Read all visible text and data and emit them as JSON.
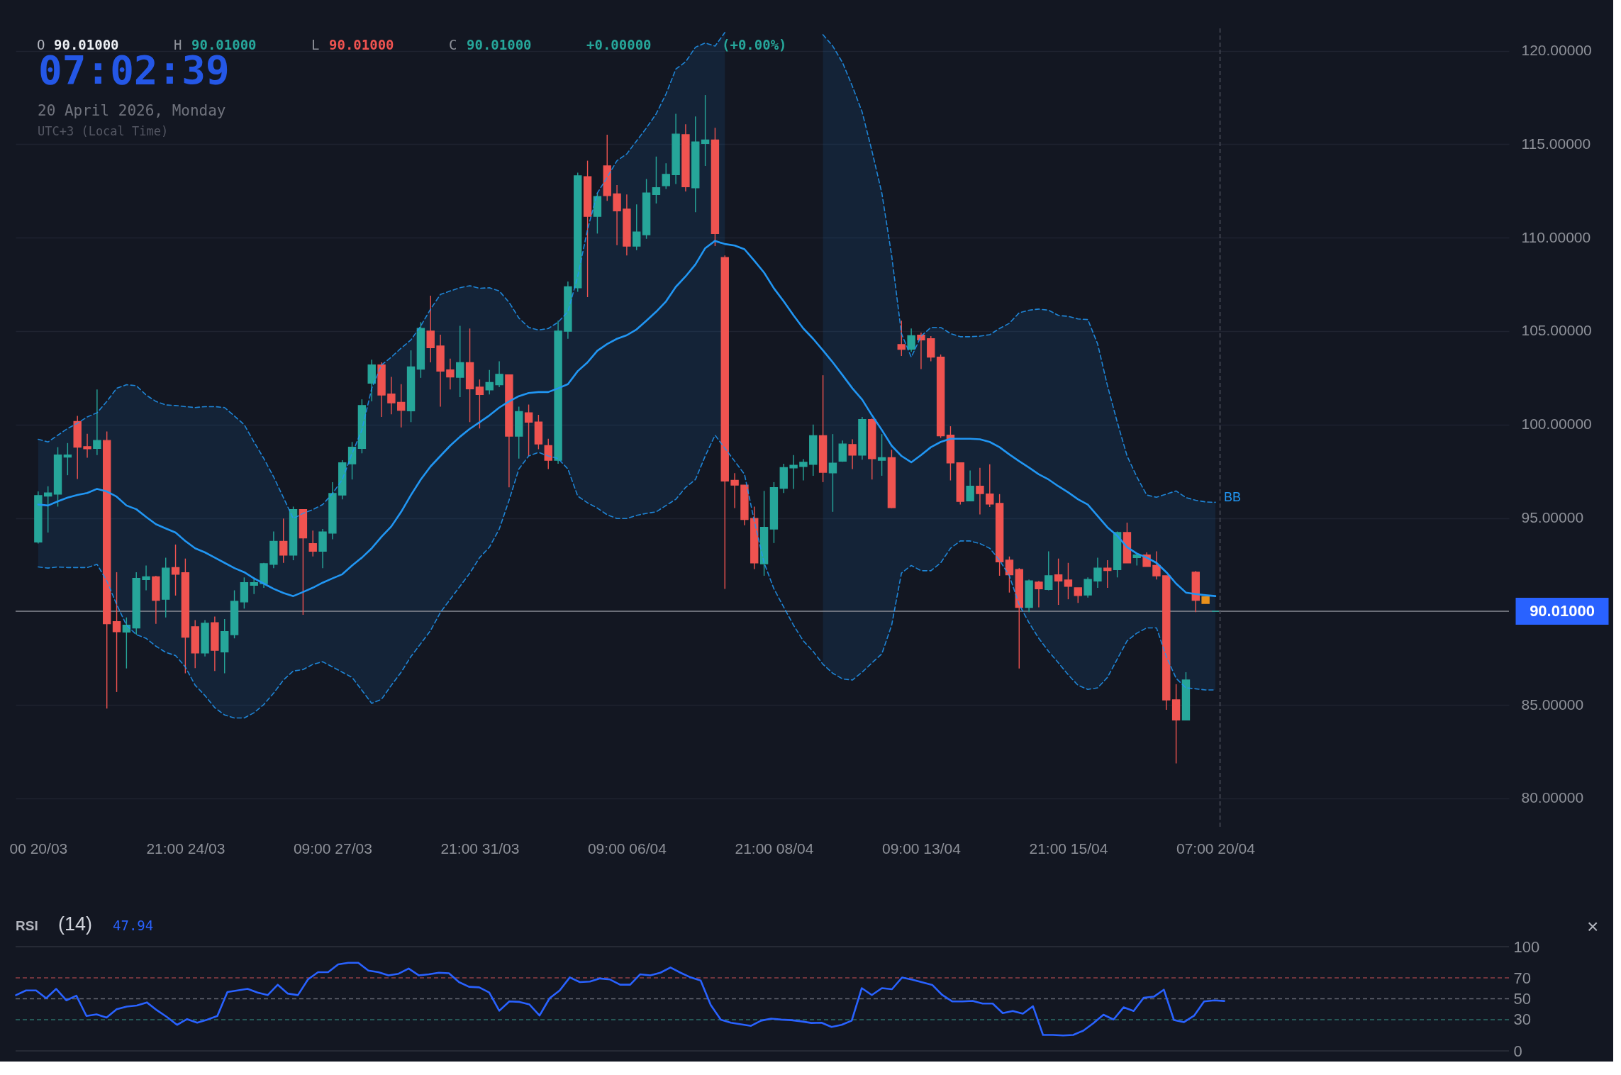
{
  "chart_data": [
    {
      "type": "candlestick",
      "annotations": [
        "O",
        "90.01000",
        "H",
        "90.01000",
        "L",
        "90.01000",
        "C",
        "90.01000",
        "+0.00000",
        "(+0.00%)",
        "07:02:39",
        "20 April 2026, Monday",
        "UTC+3 (Local Time)"
      ],
      "categories": [
        "00 20/03",
        null,
        null,
        null,
        null,
        null,
        null,
        null,
        null,
        null,
        null,
        null,
        null,
        null,
        null,
        "21:00 24/03",
        null,
        null,
        null,
        null,
        null,
        null,
        null,
        null,
        null,
        null,
        null,
        null,
        null,
        null,
        "09:00 27/03",
        null,
        null,
        null,
        null,
        null,
        null,
        null,
        null,
        null,
        null,
        null,
        null,
        null,
        null,
        "21:00 31/03",
        null,
        null,
        null,
        null,
        null,
        null,
        null,
        null,
        null,
        null,
        null,
        null,
        null,
        null,
        "09:00 06/04",
        null,
        null,
        null,
        null,
        null,
        null,
        null,
        null,
        null,
        null,
        null,
        null,
        null,
        null,
        "21:00 08/04",
        null,
        null,
        null,
        null,
        null,
        null,
        null,
        null,
        null,
        null,
        null,
        null,
        null,
        null,
        "09:00 13/04",
        null,
        null,
        null,
        null,
        null,
        null,
        null,
        null,
        null,
        null,
        null,
        null,
        null,
        null,
        "21:00 15/04",
        null,
        null,
        null,
        null,
        null,
        null,
        null,
        null,
        null,
        null,
        null,
        null,
        null,
        null,
        "07:00 20/04"
      ],
      "ohlc": [
        [
          93.72,
          96.42,
          93.63,
          96.2
        ],
        [
          96.17,
          96.7,
          94.22,
          96.34
        ],
        [
          96.28,
          98.79,
          95.61,
          98.37
        ],
        [
          98.26,
          99.01,
          97.29,
          98.37
        ],
        [
          100.16,
          100.46,
          97.09,
          98.79
        ],
        [
          98.82,
          99.51,
          98.23,
          98.71
        ],
        [
          98.73,
          101.88,
          98.37,
          99.15
        ],
        [
          99.15,
          99.63,
          84.8,
          89.34
        ],
        [
          89.45,
          92.1,
          85.69,
          88.92
        ],
        [
          88.9,
          89.68,
          86.95,
          89.26
        ],
        [
          89.12,
          92.1,
          88.76,
          91.77
        ],
        [
          91.71,
          92.46,
          91.13,
          91.85
        ],
        [
          91.85,
          91.91,
          89.34,
          90.6
        ],
        [
          90.65,
          92.88,
          89.68,
          92.32
        ],
        [
          92.35,
          93.58,
          90.85,
          91.99
        ],
        [
          92.07,
          92.83,
          86.69,
          88.62
        ],
        [
          89.18,
          89.54,
          86.97,
          87.78
        ],
        [
          87.78,
          89.54,
          87.59,
          89.37
        ],
        [
          89.4,
          89.73,
          86.81,
          87.92
        ],
        [
          87.84,
          89.59,
          86.69,
          88.92
        ],
        [
          88.76,
          91.13,
          88.56,
          90.54
        ],
        [
          90.51,
          91.82,
          90.15,
          91.54
        ],
        [
          91.4,
          91.82,
          90.93,
          91.54
        ],
        [
          91.49,
          92.6,
          91.26,
          92.55
        ],
        [
          92.52,
          94.28,
          92.32,
          93.75
        ],
        [
          93.75,
          94.97,
          92.6,
          93.02
        ],
        [
          93.02,
          95.61,
          92.74,
          95.45
        ],
        [
          95.45,
          95.45,
          89.82,
          93.94
        ],
        [
          93.63,
          94.33,
          92.94,
          93.22
        ],
        [
          93.22,
          94.41,
          92.32,
          94.25
        ],
        [
          94.19,
          96.92,
          93.86,
          96.31
        ],
        [
          96.23,
          98.09,
          96.0,
          97.95
        ],
        [
          97.9,
          99.07,
          97.06,
          98.79
        ],
        [
          98.73,
          101.35,
          98.46,
          101.02
        ],
        [
          102.22,
          103.47,
          101.24,
          103.19
        ],
        [
          103.19,
          103.33,
          100.41,
          101.58
        ],
        [
          101.63,
          102.55,
          100.55,
          101.16
        ],
        [
          101.19,
          102.16,
          99.85,
          100.77
        ],
        [
          100.74,
          103.97,
          100.13,
          103.08
        ],
        [
          102.97,
          105.48,
          102.5,
          105.14
        ],
        [
          105.0,
          106.9,
          103.33,
          104.11
        ],
        [
          104.2,
          104.81,
          100.96,
          102.86
        ],
        [
          102.92,
          103.53,
          101.88,
          102.55
        ],
        [
          102.53,
          105.28,
          101.47,
          103.31
        ],
        [
          103.31,
          105.14,
          100.13,
          101.91
        ],
        [
          102.0,
          102.41,
          99.79,
          101.61
        ],
        [
          101.86,
          102.92,
          101.61,
          102.25
        ],
        [
          102.13,
          103.39,
          102.0,
          102.69
        ],
        [
          102.66,
          102.66,
          96.64,
          99.38
        ],
        [
          99.38,
          100.96,
          98.18,
          100.69
        ],
        [
          100.63,
          101.07,
          98.32,
          100.13
        ],
        [
          100.13,
          100.52,
          98.68,
          98.96
        ],
        [
          98.87,
          99.24,
          97.62,
          98.09
        ],
        [
          98.09,
          105.56,
          97.9,
          105.0
        ],
        [
          105.0,
          107.65,
          104.59,
          107.37
        ],
        [
          107.32,
          113.48,
          107.1,
          113.31
        ],
        [
          113.26,
          114.12,
          106.82,
          111.14
        ],
        [
          111.14,
          112.39,
          110.22,
          112.2
        ],
        [
          113.84,
          115.51,
          111.97,
          112.25
        ],
        [
          112.34,
          112.81,
          109.6,
          111.44
        ],
        [
          111.53,
          112.31,
          109.05,
          109.55
        ],
        [
          109.55,
          111.78,
          109.33,
          110.3
        ],
        [
          110.16,
          113.14,
          109.94,
          112.39
        ],
        [
          112.31,
          114.34,
          111.83,
          112.67
        ],
        [
          112.78,
          113.98,
          112.61,
          113.39
        ],
        [
          113.37,
          116.63,
          112.87,
          115.54
        ],
        [
          115.51,
          116.07,
          112.47,
          112.73
        ],
        [
          112.67,
          116.49,
          111.36,
          115.12
        ],
        [
          115.04,
          117.63,
          113.84,
          115.23
        ],
        [
          115.23,
          115.88,
          109.55,
          110.22
        ],
        [
          108.94,
          109.05,
          91.21,
          96.98
        ],
        [
          97.01,
          97.4,
          95.53,
          96.76
        ],
        [
          96.76,
          96.76,
          94.61,
          94.92
        ],
        [
          94.97,
          95.61,
          92.27,
          92.6
        ],
        [
          92.55,
          96.45,
          91.91,
          94.5
        ],
        [
          94.41,
          96.92,
          93.66,
          96.62
        ],
        [
          96.59,
          97.9,
          96.34,
          97.7
        ],
        [
          97.68,
          98.37,
          96.56,
          97.82
        ],
        [
          97.76,
          98.15,
          97.01,
          97.98
        ],
        [
          97.87,
          100.0,
          97.26,
          99.4
        ],
        [
          99.4,
          102.64,
          96.92,
          97.45
        ],
        [
          97.42,
          99.49,
          95.33,
          97.93
        ],
        [
          98.04,
          99.15,
          98.01,
          98.96
        ],
        [
          98.93,
          99.21,
          97.62,
          98.37
        ],
        [
          98.37,
          100.41,
          98.12,
          100.27
        ],
        [
          100.27,
          100.32,
          97.06,
          98.18
        ],
        [
          98.09,
          99.49,
          97.26,
          98.23
        ],
        [
          98.23,
          98.65,
          95.53,
          95.56
        ],
        [
          104.28,
          105.56,
          103.67,
          104.03
        ],
        [
          104.03,
          105.14,
          103.89,
          104.75
        ],
        [
          104.78,
          104.92,
          102.97,
          104.53
        ],
        [
          104.59,
          104.73,
          103.39,
          103.61
        ],
        [
          103.61,
          103.75,
          99.29,
          99.4
        ],
        [
          99.43,
          99.91,
          97.01,
          97.95
        ],
        [
          97.95,
          97.95,
          95.72,
          95.89
        ],
        [
          95.92,
          97.54,
          95.92,
          96.7
        ],
        [
          96.7,
          97.68,
          95.19,
          96.31
        ],
        [
          96.28,
          97.87,
          95.59,
          95.75
        ],
        [
          95.78,
          96.28,
          91.91,
          92.66
        ],
        [
          92.74,
          92.94,
          91.01,
          91.96
        ],
        [
          92.24,
          92.32,
          86.95,
          90.22
        ],
        [
          90.22,
          91.71,
          89.96,
          91.63
        ],
        [
          91.57,
          91.63,
          90.22,
          91.21
        ],
        [
          91.18,
          93.22,
          91.13,
          91.91
        ],
        [
          91.96,
          92.83,
          90.35,
          91.63
        ],
        [
          91.68,
          92.6,
          90.65,
          91.35
        ],
        [
          91.26,
          91.26,
          90.46,
          90.85
        ],
        [
          90.88,
          91.82,
          90.74,
          91.71
        ],
        [
          91.63,
          92.88,
          91.26,
          92.32
        ],
        [
          92.32,
          92.74,
          91.26,
          92.19
        ],
        [
          92.24,
          94.28,
          91.82,
          94.22
        ],
        [
          94.22,
          94.75,
          92.6,
          92.6
        ],
        [
          92.88,
          93.1,
          92.46,
          93.02
        ],
        [
          93.02,
          93.16,
          92.41,
          92.41
        ],
        [
          92.46,
          93.22,
          91.71,
          91.91
        ],
        [
          91.91,
          91.91,
          84.74,
          85.27
        ],
        [
          85.27,
          86.11,
          81.87,
          84.19
        ],
        [
          84.19,
          86.75,
          84.19,
          86.33
        ],
        [
          92.1,
          92.16,
          89.96,
          90.6
        ],
        [
          90.79,
          90.79,
          90.43,
          90.43
        ],
        [
          90.01,
          90.01,
          90.01,
          90.01
        ]
      ],
      "colors": [
        "#26a69a",
        "#26a69a",
        "#26a69a",
        "#26a69a",
        "#ef5350",
        "#ef5350",
        "#26a69a",
        "#ef5350",
        "#ef5350",
        "#26a69a",
        "#26a69a",
        "#26a69a",
        "#ef5350",
        "#26a69a",
        "#ef5350",
        "#ef5350",
        "#ef5350",
        "#26a69a",
        "#ef5350",
        "#26a69a",
        "#26a69a",
        "#26a69a",
        "#26a69a",
        "#26a69a",
        "#26a69a",
        "#ef5350",
        "#26a69a",
        "#ef5350",
        "#ef5350",
        "#26a69a",
        "#26a69a",
        "#26a69a",
        "#26a69a",
        "#26a69a",
        "#26a69a",
        "#ef5350",
        "#ef5350",
        "#ef5350",
        "#26a69a",
        "#26a69a",
        "#ef5350",
        "#ef5350",
        "#ef5350",
        "#26a69a",
        "#ef5350",
        "#ef5350",
        "#26a69a",
        "#26a69a",
        "#ef5350",
        "#26a69a",
        "#ef5350",
        "#ef5350",
        "#ef5350",
        "#26a69a",
        "#26a69a",
        "#26a69a",
        "#ef5350",
        "#26a69a",
        "#ef5350",
        "#ef5350",
        "#ef5350",
        "#26a69a",
        "#26a69a",
        "#26a69a",
        "#26a69a",
        "#26a69a",
        "#ef5350",
        "#26a69a",
        "#26a69a",
        "#ef5350",
        "#ef5350",
        "#ef5350",
        "#ef5350",
        "#ef5350",
        "#26a69a",
        "#26a69a",
        "#26a69a",
        "#26a69a",
        "#26a69a",
        "#26a69a",
        "#ef5350",
        "#26a69a",
        "#26a69a",
        "#ef5350",
        "#26a69a",
        "#ef5350",
        "#26a69a",
        "#ef5350",
        "#ef5350",
        "#26a69a",
        "#ef5350",
        "#ef5350",
        "#ef5350",
        "#ef5350",
        "#ef5350",
        "#26a69a",
        "#ef5350",
        "#ef5350",
        "#ef5350",
        "#ef5350",
        "#ef5350",
        "#26a69a",
        "#ef5350",
        "#26a69a",
        "#ef5350",
        "#ef5350",
        "#ef5350",
        "#26a69a",
        "#26a69a",
        "#ef5350",
        "#26a69a",
        "#ef5350",
        "#26a69a",
        "#ef5350",
        "#ef5350",
        "#ef5350",
        "#ef5350",
        "#26a69a",
        "#ef5350",
        "#e8911c",
        "#26a69a"
      ],
      "series": [
        {
          "name": "BB",
          "type": "line",
          "color": "#2196f3",
          "values": [
            95.72,
            95.67,
            95.89,
            96.09,
            96.23,
            96.34,
            96.56,
            96.42,
            96.14,
            95.67,
            95.47,
            95.06,
            94.67,
            94.44,
            94.22,
            93.77,
            93.38,
            93.16,
            92.88,
            92.6,
            92.32,
            92.1,
            91.77,
            91.49,
            91.21,
            90.99,
            90.82,
            91.04,
            91.27,
            91.54,
            91.77,
            91.99,
            92.46,
            92.88,
            93.38,
            94.0,
            94.55,
            95.33,
            96.23,
            97.06,
            97.76,
            98.32,
            98.87,
            99.35,
            99.77,
            100.13,
            100.49,
            100.91,
            101.24,
            101.52,
            101.69,
            101.74,
            101.74,
            101.94,
            102.16,
            102.86,
            103.33,
            103.95,
            104.31,
            104.59,
            104.78,
            105.09,
            105.56,
            106.04,
            106.59,
            107.37,
            107.93,
            108.57,
            109.44,
            109.83,
            109.66,
            109.58,
            109.38,
            108.77,
            108.13,
            107.29,
            106.59,
            105.84,
            105.14,
            104.59,
            103.97,
            103.33,
            102.64,
            101.94,
            101.33,
            100.49,
            99.71,
            98.87,
            98.32,
            97.98,
            98.37,
            98.79,
            99.07,
            99.24,
            99.24,
            99.24,
            99.21,
            99.07,
            98.79,
            98.4,
            98.04,
            97.7,
            97.34,
            97.06,
            96.7,
            96.37,
            96.0,
            95.72,
            95.11,
            94.5,
            94.05,
            93.44,
            93.1,
            92.88,
            92.6,
            92.1,
            91.49,
            91.01,
            90.93,
            90.87,
            90.82
          ],
          "lower": [
            92.38,
            92.32,
            92.38,
            92.35,
            92.35,
            92.35,
            92.52,
            91.63,
            90.37,
            89.26,
            88.76,
            88.56,
            88.14,
            87.81,
            87.64,
            87.03,
            86.05,
            85.5,
            84.85,
            84.46,
            84.3,
            84.3,
            84.58,
            85.02,
            85.63,
            86.33,
            86.81,
            86.89,
            87.17,
            87.31,
            87.03,
            86.75,
            86.47,
            85.78,
            85.08,
            85.3,
            86.05,
            86.75,
            87.59,
            88.28,
            88.98,
            89.95,
            90.65,
            91.35,
            92.05,
            92.88,
            93.44,
            94.41,
            95.95,
            97.62,
            98.32,
            98.51,
            98.32,
            98.18,
            97.62,
            96.17,
            95.81,
            95.53,
            95.17,
            94.97,
            94.97,
            95.14,
            95.25,
            95.33,
            95.67,
            96.0,
            96.64,
            97.06,
            98.32,
            99.43,
            98.73,
            null,
            null,
            null,
            null,
            null,
            null,
            null,
            null,
            null,
            87.17,
            86.69,
            86.39,
            86.33,
            86.75,
            87.25,
            87.73,
            89.26,
            92.05,
            92.46,
            92.18,
            92.18,
            92.6,
            93.38,
            93.77,
            93.77,
            93.63,
            93.38,
            92.74,
            91.91,
            90.37,
            89.4,
            88.56,
            87.86,
            87.25,
            86.61,
            86.05,
            85.83,
            85.91,
            86.47,
            87.45,
            88.42,
            88.84,
            89.12,
            89.12,
            87.59,
            86.42,
            85.91,
            85.86,
            85.8,
            85.8
          ],
          "upper": [
            99.21,
            99.07,
            99.43,
            99.79,
            100.07,
            100.41,
            100.63,
            101.24,
            101.94,
            102.13,
            102.08,
            101.58,
            101.24,
            101.05,
            101.02,
            100.96,
            100.91,
            100.96,
            100.96,
            100.91,
            100.46,
            99.99,
            99.07,
            98.18,
            97.2,
            96.09,
            94.97,
            95.25,
            95.45,
            95.72,
            96.31,
            97.06,
            98.46,
            99.71,
            101.94,
            103.19,
            103.61,
            104.09,
            104.53,
            105.28,
            106.18,
            106.96,
            107.15,
            107.32,
            107.43,
            107.29,
            107.32,
            107.15,
            106.54,
            105.7,
            105.2,
            105.06,
            105.14,
            105.48,
            106.04,
            107.93,
            110.44,
            112.39,
            113.23,
            114.12,
            114.48,
            115.18,
            115.87,
            116.63,
            117.69,
            119.02,
            119.41,
            120.19,
            120.42,
            120.25,
            120.98,
            null,
            null,
            null,
            null,
            null,
            null,
            null,
            null,
            null,
            120.86,
            120.25,
            119.36,
            118.1,
            116.71,
            114.62,
            112.39,
            109.05,
            104.87,
            103.61,
            104.73,
            105.2,
            105.2,
            104.87,
            104.7,
            104.7,
            104.73,
            104.81,
            105.14,
            105.42,
            105.98,
            106.12,
            106.18,
            106.12,
            105.84,
            105.79,
            105.65,
            105.62,
            104.31,
            102.08,
            100.13,
            98.32,
            97.2,
            96.23,
            96.11,
            96.28,
            96.45,
            96.09,
            95.95,
            95.86,
            95.84
          ]
        },
        {
          "type": "line",
          "color": "#2196f3",
          "line_style": "dashed",
          "values": [
            99.21,
            99.07,
            99.43,
            99.79,
            100.07,
            100.41,
            100.63,
            101.24,
            101.94,
            102.13,
            102.08,
            101.58,
            101.24,
            101.05,
            101.02,
            100.96,
            100.91,
            100.96,
            100.96,
            100.91,
            100.46,
            99.99,
            99.07,
            98.18,
            97.2,
            96.09,
            94.97,
            95.25,
            95.45,
            95.72,
            96.31,
            97.06,
            98.46,
            99.71,
            101.94,
            103.19,
            103.61,
            104.09,
            104.53,
            105.28,
            106.18,
            106.96,
            107.15,
            107.32,
            107.43,
            107.29,
            107.32,
            107.15,
            106.54,
            105.7,
            105.2,
            105.06,
            105.14,
            105.48,
            106.04,
            107.93,
            110.44,
            112.39,
            113.23,
            114.12,
            114.48,
            115.18,
            115.87,
            116.63,
            117.69,
            119.02,
            119.41,
            120.19,
            120.42,
            120.25,
            120.98,
            null,
            null,
            null,
            null,
            null,
            null,
            null,
            null,
            null,
            120.86,
            120.25,
            119.36,
            118.1,
            116.71,
            114.62,
            112.39,
            109.05,
            104.87,
            103.61,
            104.73,
            105.2,
            105.2,
            104.87,
            104.7,
            104.7,
            104.73,
            104.81,
            105.14,
            105.42,
            105.98,
            106.12,
            106.18,
            106.12,
            105.84,
            105.79,
            105.65,
            105.62,
            104.31,
            102.08,
            100.13,
            98.32,
            97.2,
            96.23,
            96.11,
            96.28,
            96.45,
            96.09,
            95.95,
            95.86,
            95.84
          ]
        },
        {
          "type": "line",
          "color": "#2196f3",
          "line_style": "dashed",
          "values": [
            92.38,
            92.32,
            92.38,
            92.35,
            92.35,
            92.35,
            92.52,
            91.63,
            90.37,
            89.26,
            88.76,
            88.56,
            88.14,
            87.81,
            87.64,
            87.03,
            86.05,
            85.5,
            84.85,
            84.46,
            84.3,
            84.3,
            84.58,
            85.02,
            85.63,
            86.33,
            86.81,
            86.89,
            87.17,
            87.31,
            87.03,
            86.75,
            86.47,
            85.78,
            85.08,
            85.3,
            86.05,
            86.75,
            87.59,
            88.28,
            88.98,
            89.95,
            90.65,
            91.35,
            92.05,
            92.88,
            93.44,
            94.41,
            95.95,
            97.62,
            98.32,
            98.51,
            98.32,
            98.18,
            97.62,
            96.17,
            95.81,
            95.53,
            95.17,
            94.97,
            94.97,
            95.14,
            95.25,
            95.33,
            95.67,
            96.0,
            96.64,
            97.06,
            98.32,
            99.43,
            98.73,
            98.04,
            97.34,
            94.83,
            92.6,
            91.21,
            90.23,
            89.26,
            88.42,
            87.86,
            87.17,
            86.69,
            86.39,
            86.33,
            86.75,
            87.25,
            87.73,
            89.26,
            92.05,
            92.46,
            92.18,
            92.18,
            92.6,
            93.38,
            93.77,
            93.77,
            93.63,
            93.38,
            92.74,
            91.91,
            90.37,
            89.4,
            88.56,
            87.86,
            87.25,
            86.61,
            86.05,
            85.83,
            85.91,
            86.47,
            87.45,
            88.42,
            88.84,
            89.12,
            89.12,
            87.59,
            86.42,
            85.91,
            85.86,
            85.8,
            85.8
          ]
        }
      ],
      "ylim": [
        78.4,
        121.2
      ],
      "yticks": [
        {
          "value": 80,
          "label": "80.00000"
        },
        {
          "value": 85,
          "label": "85.00000"
        },
        {
          "value": 95,
          "label": "95.00000"
        },
        {
          "value": 100,
          "label": "100.00000"
        },
        {
          "value": 105,
          "label": "105.00000"
        },
        {
          "value": 110,
          "label": "110.00000"
        },
        {
          "value": 115,
          "label": "115.00000"
        },
        {
          "value": 120,
          "label": "120.00000"
        }
      ],
      "grid": "y",
      "ref_lines": [
        {
          "axis": "y",
          "value": 90.01,
          "label": "90.01000",
          "color": "#8a8d96",
          "line_style": "solid"
        },
        {
          "axis": "x",
          "value": "07:00 20/04",
          "color": "#4a4e5a",
          "line_style": "dashed"
        }
      ]
    },
    {
      "type": "line",
      "title": "RSI",
      "subtitle": "(14)",
      "annotations": [
        "47.94",
        "×"
      ],
      "categories": [
        null,
        null,
        null,
        null,
        null,
        null,
        null,
        null,
        null,
        null,
        null,
        null,
        null,
        null,
        null,
        null,
        null,
        null,
        null,
        null,
        null,
        null,
        null,
        null,
        null,
        null,
        null,
        null,
        null,
        null,
        null,
        null,
        null,
        null,
        null,
        null,
        null,
        null,
        null,
        null,
        null,
        null,
        null,
        null,
        null,
        null,
        null,
        null,
        null,
        null,
        null,
        null,
        null,
        null,
        null,
        null,
        null,
        null,
        null,
        null,
        null,
        null,
        null,
        null,
        null,
        null,
        null,
        null,
        null,
        null,
        null,
        null,
        null,
        null,
        null,
        null,
        null,
        null,
        null,
        null,
        null,
        null,
        null,
        null,
        null,
        null,
        null,
        null,
        null,
        null,
        null,
        null,
        null,
        null,
        null,
        null,
        null,
        null,
        null,
        null,
        null,
        null,
        null,
        null,
        null,
        null,
        null,
        null,
        null,
        null,
        null,
        null,
        null,
        null,
        null,
        null,
        null,
        null,
        null,
        null,
        null
      ],
      "series": [
        {
          "color": "#2962ff",
          "values": [
            53.5,
            58,
            58,
            50.5,
            59.5,
            48.5,
            53,
            33.5,
            35,
            32,
            40,
            42.5,
            43.5,
            46.5,
            39,
            32.5,
            25,
            30.5,
            27,
            30,
            33.5,
            56.5,
            58,
            59.5,
            56,
            53.5,
            63.5,
            55,
            53.5,
            68.5,
            75.5,
            75.5,
            83,
            84.5,
            84.5,
            77,
            75.5,
            72.5,
            74,
            79,
            72.5,
            73.5,
            75,
            74.5,
            66,
            61.5,
            61,
            56,
            38.5,
            47.5,
            47,
            44.5,
            34,
            50.5,
            58,
            70.5,
            66,
            66.5,
            69.5,
            68.5,
            63.5,
            63.5,
            73.5,
            72.5,
            75,
            80,
            75,
            70.5,
            67.5,
            44,
            30,
            27,
            25.5,
            24,
            29,
            31,
            30,
            29.5,
            28.3,
            26.8,
            27,
            23,
            25,
            29,
            60.2,
            53.6,
            60.2,
            59.2,
            70.4,
            68.4,
            65.8,
            63.3,
            53.6,
            47.4,
            47.4,
            48,
            45.4,
            45.4,
            36.2,
            38.3,
            35.7,
            42.9,
            15.3,
            15.3,
            14.8,
            15.3,
            19.4,
            26.5,
            34.7,
            30.1,
            41.8,
            38.3,
            51,
            52,
            58.7,
            29.6,
            27.6,
            33.7,
            47.4,
            48.5,
            47.9
          ]
        }
      ],
      "ylim": [
        0,
        100
      ],
      "yticks": [
        0,
        30,
        50,
        70,
        100
      ],
      "tick_labels": "y",
      "ref_lines": [
        {
          "axis": "y",
          "value": 100,
          "color": "#2e323d",
          "line_style": "solid"
        },
        {
          "axis": "y",
          "value": 70,
          "color": "#8e3f45",
          "line_style": "dashed"
        },
        {
          "axis": "y",
          "value": 50,
          "color": "#666974",
          "line_style": "dashed"
        },
        {
          "axis": "y",
          "value": 30,
          "color": "#2d6f68",
          "line_style": "dashed"
        },
        {
          "axis": "y",
          "value": 0,
          "color": "#2e323d",
          "line_style": "solid"
        }
      ]
    }
  ]
}
